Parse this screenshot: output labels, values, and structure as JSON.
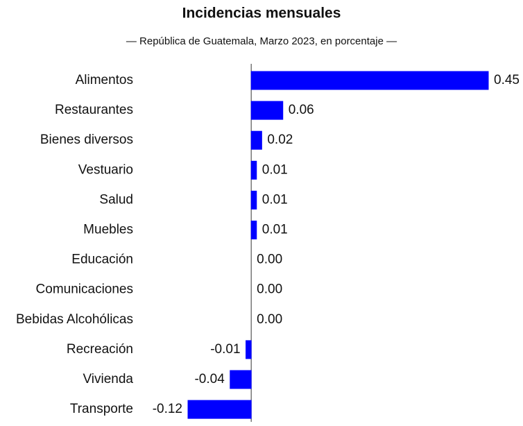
{
  "chart_data": {
    "type": "barh",
    "title": "Incidencias mensuales",
    "subtitle": "— República de Guatemala, Marzo 2023, en porcentaje —",
    "color": "#0000ff",
    "categories": [
      "Alimentos",
      "Restaurantes",
      "Bienes diversos",
      "Vestuario",
      "Salud",
      "Muebles",
      "Educación",
      "Comunicaciones",
      "Bebidas Alcohólicas",
      "Recreación",
      "Vivienda",
      "Transporte"
    ],
    "values": [
      0.45,
      0.06,
      0.02,
      0.01,
      0.01,
      0.01,
      0.0,
      0.0,
      0.0,
      -0.01,
      -0.04,
      -0.12
    ],
    "value_labels": [
      "0.45",
      "0.06",
      "0.02",
      "0.01",
      "0.01",
      "0.01",
      "0.00",
      "0.00",
      "0.00",
      "-0.01",
      "-0.04",
      "-0.12"
    ]
  }
}
